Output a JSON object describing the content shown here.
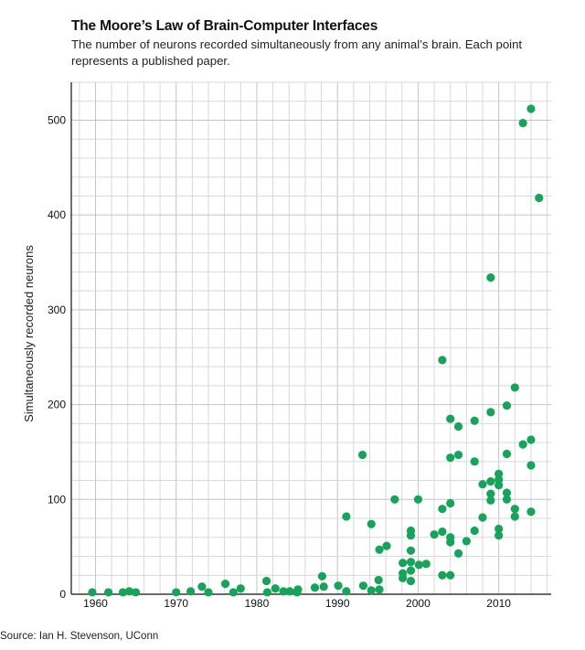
{
  "header": {
    "title": "The Moore’s Law of Brain-Computer Interfaces",
    "subtitle": "The number of neurons recorded simultaneously from any animal’s brain. Each point represents a published paper."
  },
  "footer": {
    "source": "Source: Ian H. Stevenson, UConn"
  },
  "colors": {
    "point": "#16a35a",
    "grid": "#d9d9d9",
    "axis": "#111111"
  },
  "chart_data": {
    "type": "scatter",
    "title": "The Moore’s Law of Brain-Computer Interfaces",
    "subtitle": "The number of neurons recorded simultaneously from any animal’s brain. Each point represents a published paper.",
    "xlabel": "",
    "ylabel": "Simultaneously recorded neurons",
    "xlim": [
      1957,
      2016.5
    ],
    "ylim": [
      0,
      540
    ],
    "xticks": [
      1960,
      1970,
      1980,
      1990,
      2000,
      2010
    ],
    "yticks": [
      0,
      100,
      200,
      300,
      400,
      500
    ],
    "grid": true,
    "points": [
      {
        "x": 1959.6,
        "y": 2
      },
      {
        "x": 1961.6,
        "y": 2
      },
      {
        "x": 1963.4,
        "y": 2
      },
      {
        "x": 1964.2,
        "y": 3
      },
      {
        "x": 1965,
        "y": 2
      },
      {
        "x": 1970,
        "y": 2
      },
      {
        "x": 1971.8,
        "y": 3
      },
      {
        "x": 1973.2,
        "y": 8
      },
      {
        "x": 1974,
        "y": 2
      },
      {
        "x": 1976.1,
        "y": 11
      },
      {
        "x": 1977.1,
        "y": 2
      },
      {
        "x": 1978,
        "y": 6
      },
      {
        "x": 1981.2,
        "y": 14
      },
      {
        "x": 1981.3,
        "y": 2
      },
      {
        "x": 1982.3,
        "y": 6
      },
      {
        "x": 1983.3,
        "y": 3
      },
      {
        "x": 1984.1,
        "y": 3
      },
      {
        "x": 1985,
        "y": 2
      },
      {
        "x": 1985.1,
        "y": 5
      },
      {
        "x": 1987.2,
        "y": 7
      },
      {
        "x": 1988.1,
        "y": 19
      },
      {
        "x": 1988.3,
        "y": 8
      },
      {
        "x": 1990.1,
        "y": 9
      },
      {
        "x": 1991.1,
        "y": 3
      },
      {
        "x": 1991.1,
        "y": 82
      },
      {
        "x": 1993.1,
        "y": 147
      },
      {
        "x": 1993.2,
        "y": 9
      },
      {
        "x": 1994.2,
        "y": 4
      },
      {
        "x": 1994.2,
        "y": 74
      },
      {
        "x": 1995.1,
        "y": 15
      },
      {
        "x": 1995.2,
        "y": 5
      },
      {
        "x": 1995.2,
        "y": 47
      },
      {
        "x": 1996.1,
        "y": 51
      },
      {
        "x": 1997.1,
        "y": 100
      },
      {
        "x": 1998.1,
        "y": 33
      },
      {
        "x": 1998.1,
        "y": 22
      },
      {
        "x": 1998.1,
        "y": 17
      },
      {
        "x": 1999.1,
        "y": 67
      },
      {
        "x": 1999.1,
        "y": 62
      },
      {
        "x": 1999.1,
        "y": 46
      },
      {
        "x": 1999.1,
        "y": 34
      },
      {
        "x": 1999.1,
        "y": 25
      },
      {
        "x": 1999.1,
        "y": 14
      },
      {
        "x": 2000,
        "y": 100
      },
      {
        "x": 2000.1,
        "y": 31
      },
      {
        "x": 2001,
        "y": 32
      },
      {
        "x": 2002,
        "y": 63
      },
      {
        "x": 2003,
        "y": 247
      },
      {
        "x": 2003,
        "y": 90
      },
      {
        "x": 2003,
        "y": 66
      },
      {
        "x": 2003,
        "y": 20
      },
      {
        "x": 2004,
        "y": 185
      },
      {
        "x": 2004,
        "y": 144
      },
      {
        "x": 2004,
        "y": 96
      },
      {
        "x": 2004,
        "y": 60
      },
      {
        "x": 2004,
        "y": 55
      },
      {
        "x": 2004,
        "y": 20
      },
      {
        "x": 2005,
        "y": 177
      },
      {
        "x": 2005,
        "y": 147
      },
      {
        "x": 2005,
        "y": 43
      },
      {
        "x": 2006,
        "y": 56
      },
      {
        "x": 2007,
        "y": 183
      },
      {
        "x": 2007,
        "y": 140
      },
      {
        "x": 2007,
        "y": 67
      },
      {
        "x": 2008,
        "y": 116
      },
      {
        "x": 2008,
        "y": 81
      },
      {
        "x": 2009,
        "y": 334
      },
      {
        "x": 2009,
        "y": 192
      },
      {
        "x": 2009,
        "y": 119
      },
      {
        "x": 2009,
        "y": 106
      },
      {
        "x": 2009,
        "y": 99
      },
      {
        "x": 2010,
        "y": 127
      },
      {
        "x": 2010,
        "y": 121
      },
      {
        "x": 2010,
        "y": 115
      },
      {
        "x": 2010,
        "y": 69
      },
      {
        "x": 2010,
        "y": 62
      },
      {
        "x": 2011,
        "y": 199
      },
      {
        "x": 2011,
        "y": 148
      },
      {
        "x": 2011,
        "y": 107
      },
      {
        "x": 2011,
        "y": 100
      },
      {
        "x": 2012,
        "y": 218
      },
      {
        "x": 2012,
        "y": 90
      },
      {
        "x": 2012,
        "y": 82
      },
      {
        "x": 2013,
        "y": 497
      },
      {
        "x": 2013,
        "y": 158
      },
      {
        "x": 2014,
        "y": 512
      },
      {
        "x": 2014,
        "y": 163
      },
      {
        "x": 2014,
        "y": 136
      },
      {
        "x": 2014,
        "y": 87
      },
      {
        "x": 2015,
        "y": 418
      }
    ]
  }
}
